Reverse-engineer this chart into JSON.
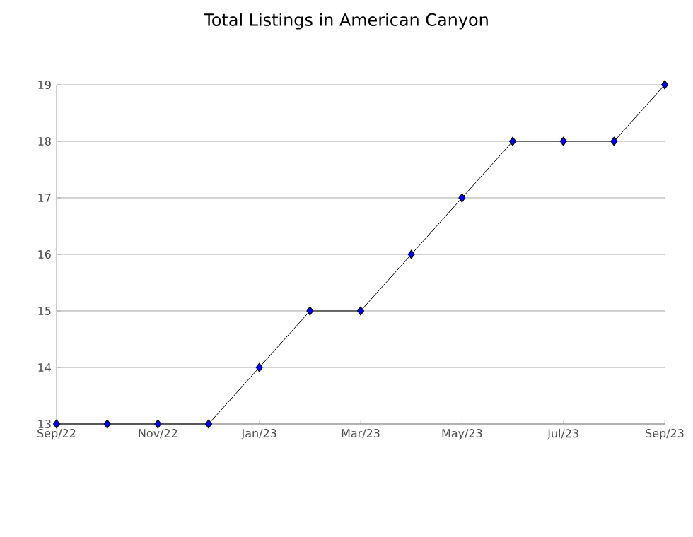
{
  "chart_data": {
    "type": "line",
    "title": "Total Listings in American Canyon",
    "x": [
      "2022-09",
      "2022-10",
      "2022-11",
      "2022-12",
      "2023-01",
      "2023-02",
      "2023-03",
      "2023-04",
      "2023-05",
      "2023-06",
      "2023-07",
      "2023-08",
      "2023-09"
    ],
    "series": [
      {
        "color": "#0000ff",
        "values": [
          13,
          13,
          13,
          13,
          14,
          15,
          15,
          16,
          17,
          18,
          18,
          18,
          19
        ]
      }
    ],
    "xlim": [
      "2022-09",
      "2023-09"
    ],
    "xticks": [
      {
        "value": "2022-09",
        "label": "Sep/22"
      },
      {
        "value": "2022-11",
        "label": "Nov/22"
      },
      {
        "value": "2023-01",
        "label": "Jan/23"
      },
      {
        "value": "2023-03",
        "label": "Mar/23"
      },
      {
        "value": "2023-05",
        "label": "May/23"
      },
      {
        "value": "2023-07",
        "label": "Jul/23"
      },
      {
        "value": "2023-09",
        "label": "Sep/23"
      }
    ],
    "ylim": [
      13,
      19
    ],
    "yticks": [
      13,
      14,
      15,
      16,
      17,
      18,
      19
    ],
    "grid": "y",
    "marker": "diamond",
    "line_style": "solid"
  }
}
